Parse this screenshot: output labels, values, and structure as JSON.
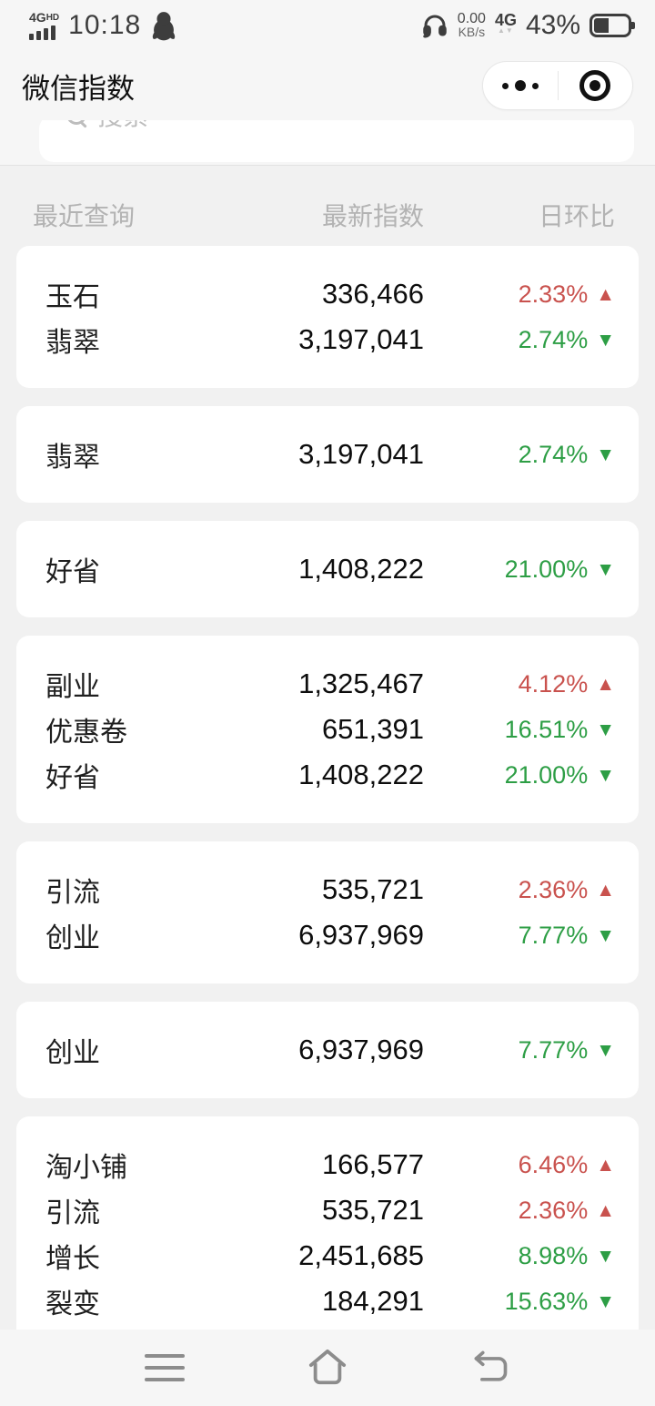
{
  "status_bar": {
    "network_label": "4G",
    "network_label_sup": "HD",
    "time": "10:18",
    "speed_value": "0.00",
    "speed_unit": "KB/s",
    "net_type": "4G",
    "net_arrows": "▲▼",
    "battery_percent": "43%"
  },
  "header": {
    "title": "微信指数"
  },
  "search": {
    "placeholder": "搜索"
  },
  "table": {
    "headers": {
      "recent": "最近查询",
      "index": "最新指数",
      "change": "日环比"
    },
    "groups": [
      {
        "rows": [
          {
            "keyword": "玉石",
            "index": "336,466",
            "change": "2.33%",
            "direction": "up"
          },
          {
            "keyword": "翡翠",
            "index": "3,197,041",
            "change": "2.74%",
            "direction": "down"
          }
        ]
      },
      {
        "rows": [
          {
            "keyword": "翡翠",
            "index": "3,197,041",
            "change": "2.74%",
            "direction": "down"
          }
        ]
      },
      {
        "rows": [
          {
            "keyword": "好省",
            "index": "1,408,222",
            "change": "21.00%",
            "direction": "down"
          }
        ]
      },
      {
        "rows": [
          {
            "keyword": "副业",
            "index": "1,325,467",
            "change": "4.12%",
            "direction": "up"
          },
          {
            "keyword": "优惠卷",
            "index": "651,391",
            "change": "16.51%",
            "direction": "down"
          },
          {
            "keyword": "好省",
            "index": "1,408,222",
            "change": "21.00%",
            "direction": "down"
          }
        ]
      },
      {
        "rows": [
          {
            "keyword": "引流",
            "index": "535,721",
            "change": "2.36%",
            "direction": "up"
          },
          {
            "keyword": "创业",
            "index": "6,937,969",
            "change": "7.77%",
            "direction": "down"
          }
        ]
      },
      {
        "rows": [
          {
            "keyword": "创业",
            "index": "6,937,969",
            "change": "7.77%",
            "direction": "down"
          }
        ]
      },
      {
        "rows": [
          {
            "keyword": "淘小铺",
            "index": "166,577",
            "change": "6.46%",
            "direction": "up"
          },
          {
            "keyword": "引流",
            "index": "535,721",
            "change": "2.36%",
            "direction": "up"
          },
          {
            "keyword": "增长",
            "index": "2,451,685",
            "change": "8.98%",
            "direction": "down"
          },
          {
            "keyword": "裂变",
            "index": "184,291",
            "change": "15.63%",
            "direction": "down"
          }
        ]
      }
    ]
  },
  "icons": {
    "up_arrow": "▲",
    "down_arrow": "▼"
  },
  "colors": {
    "up_red": "#c9524e",
    "down_green": "#2d9e45"
  }
}
